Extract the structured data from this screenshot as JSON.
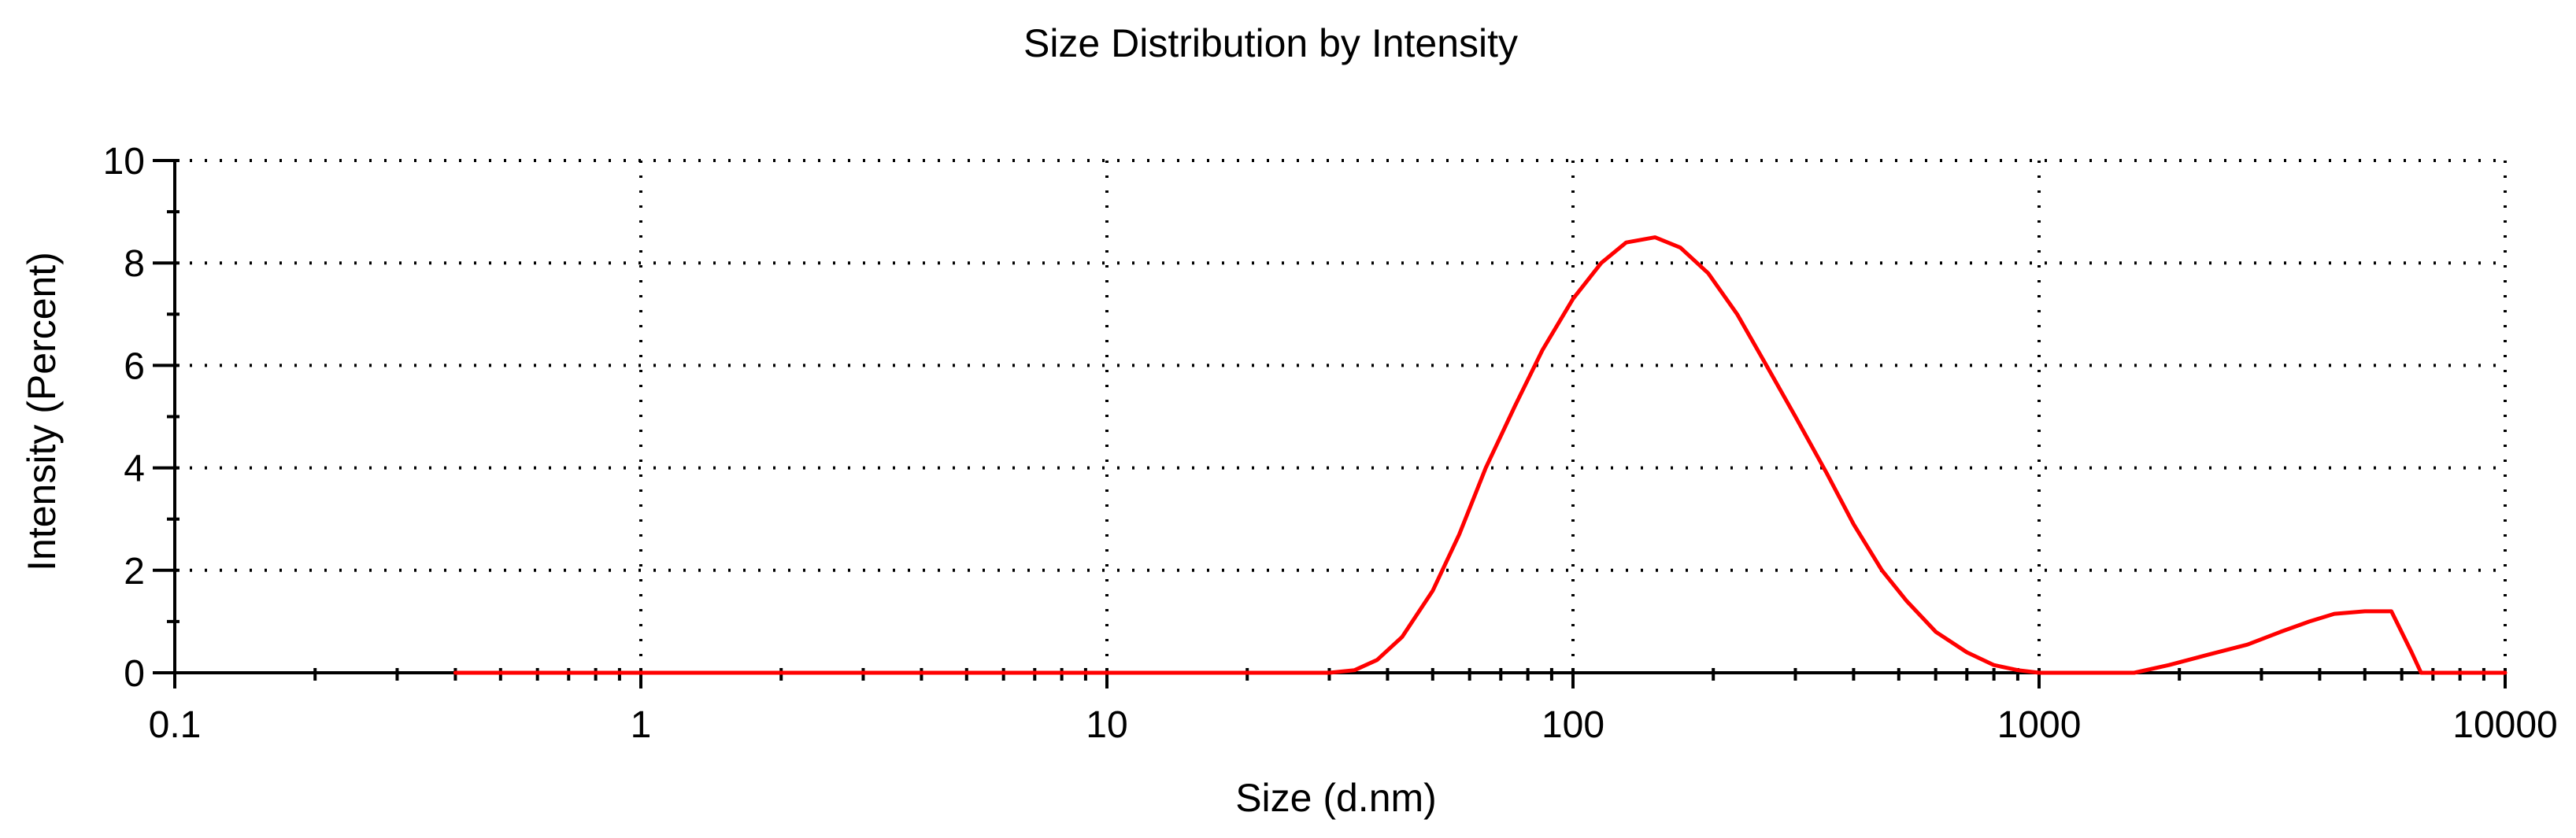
{
  "chart_data": {
    "type": "line",
    "title": "Size Distribution by Intensity",
    "xlabel": "Size (d.nm)",
    "ylabel": "Intensity (Percent)",
    "x_scale": "log",
    "xlim": [
      0.1,
      10000
    ],
    "ylim": [
      0,
      10
    ],
    "x_ticks": [
      0.1,
      1,
      10,
      100,
      1000,
      10000
    ],
    "x_tick_labels": [
      "0.1",
      "1",
      "10",
      "100",
      "1000",
      "10000"
    ],
    "y_ticks": [
      0,
      2,
      4,
      6,
      8,
      10
    ],
    "y_tick_labels": [
      "0",
      "2",
      "4",
      "6",
      "8",
      "10"
    ],
    "grid": true,
    "series": [
      {
        "color": "#ff0000",
        "x": [
          0.4,
          1,
          10,
          30,
          34,
          38,
          43,
          50,
          57,
          65,
          75,
          86,
          100,
          115,
          130,
          150,
          170,
          195,
          225,
          260,
          300,
          350,
          400,
          460,
          520,
          600,
          700,
          800,
          900,
          1000,
          1600,
          1900,
          2300,
          2800,
          3300,
          3800,
          4300,
          5000,
          5700,
          6300,
          6600,
          10000
        ],
        "y": [
          0,
          0,
          0,
          0,
          0.05,
          0.25,
          0.7,
          1.6,
          2.7,
          4.0,
          5.2,
          6.3,
          7.3,
          8.0,
          8.4,
          8.5,
          8.3,
          7.8,
          7.0,
          6.0,
          5.0,
          3.9,
          2.9,
          2.0,
          1.4,
          0.8,
          0.4,
          0.15,
          0.05,
          0,
          0,
          0.15,
          0.35,
          0.55,
          0.8,
          1.0,
          1.15,
          1.2,
          1.2,
          0.4,
          0,
          0
        ]
      }
    ]
  },
  "colors": {
    "series": "#ff0000",
    "axis": "#000000",
    "grid": "#000000"
  }
}
